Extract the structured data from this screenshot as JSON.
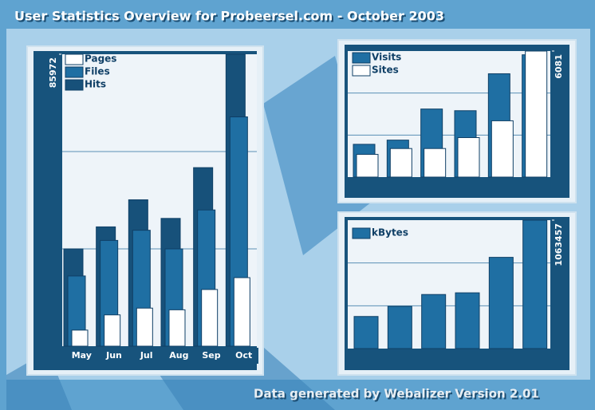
{
  "title": "User Statistics Overview for Probeersel.com - October 2003",
  "footer": "Data generated by Webalizer Version 2.01",
  "chart_data": [
    {
      "type": "bar",
      "categories": [
        "May",
        "Jun",
        "Jul",
        "Aug",
        "Sep",
        "Oct"
      ],
      "series": [
        {
          "name": "Pages",
          "color": "#ffffff",
          "values": [
            4735,
            9220,
            11214,
            10715,
            16696,
            20185
          ]
        },
        {
          "name": "Files",
          "color": "#1f6fa3",
          "values": [
            20683,
            31149,
            34140,
            28657,
            40120,
            67531
          ]
        },
        {
          "name": "Hits",
          "color": "#17517a",
          "values": [
            28657,
            35136,
            43110,
            37628,
            52580,
            85972
          ]
        }
      ],
      "ylim": [
        0,
        85972
      ],
      "yticks": [
        85972
      ],
      "legend": "top-left"
    },
    {
      "type": "bar",
      "series": [
        {
          "name": "Visits",
          "color": "#1f6fa3",
          "values": [
            1581,
            1784,
            3284,
            3203,
            4986,
            5900
          ]
        },
        {
          "name": "Sites",
          "color": "#ffffff",
          "values": [
            1095,
            1378,
            1378,
            1905,
            2716,
            6081
          ]
        }
      ],
      "ylim": [
        0,
        6081
      ],
      "yticks": [
        6081
      ],
      "legend": "top-left"
    },
    {
      "type": "bar",
      "series": [
        {
          "name": "kBytes",
          "color": "#1f6fa3",
          "values": [
            265864,
            349821,
            447771,
            461764,
            755613,
            1063457
          ]
        }
      ],
      "ylim": [
        0,
        1063457
      ],
      "yticks": [
        1063457
      ],
      "legend": "top-left"
    }
  ]
}
